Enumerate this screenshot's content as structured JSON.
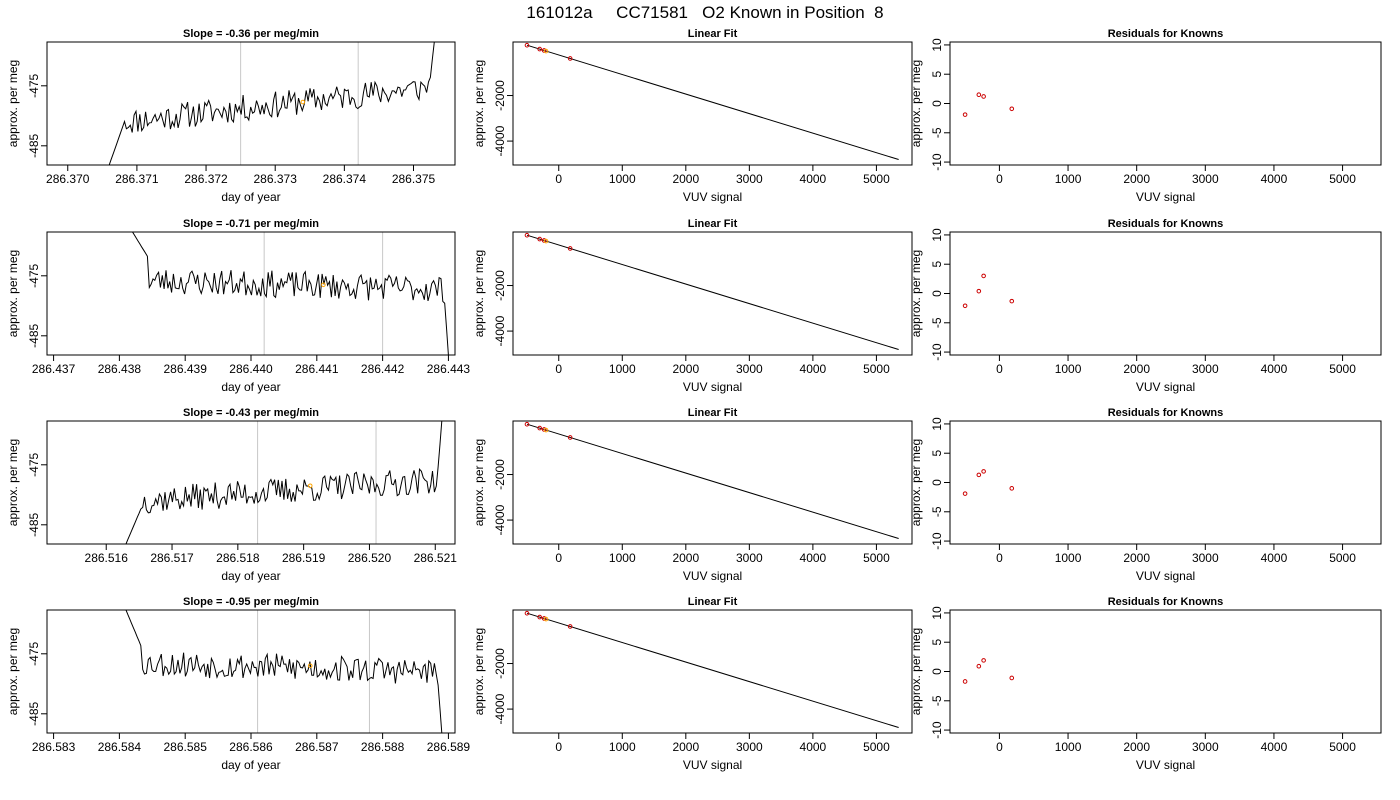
{
  "figure": {
    "title": "161012a     CC71581   O2 Known in Position  8"
  },
  "colors": {
    "line": "#000000",
    "grid": "#c8c8c8",
    "sample": "#ffa500",
    "residual": "#cc0000",
    "fit": "#000000"
  },
  "chart_data": [
    {
      "type": "line",
      "row": 0,
      "title": "Slope =  -0.36  per meg/min",
      "xlabel": "day of year",
      "ylabel": "approx. per meg",
      "xlim": [
        286.3697,
        286.3756
      ],
      "ylim": [
        -488.2,
        -467.7
      ],
      "xticks": [
        286.37,
        286.371,
        286.372,
        286.373,
        286.374,
        286.375
      ],
      "xtick_labels": [
        "286.370",
        "286.371",
        "286.372",
        "286.373",
        "286.374",
        "286.375"
      ],
      "yticks": [
        -475,
        -485
      ],
      "ytick_labels": [
        "-475",
        "-485"
      ],
      "vlines": [
        286.3725,
        286.3742
      ],
      "marker": {
        "x": 286.3734,
        "y": -477.7
      },
      "x_start": 286.3706,
      "x_end": 286.3753,
      "rise": {
        "y_start": -488.2,
        "y_at": -480.5
      },
      "rise_end": {
        "y_end": -467.7
      },
      "level": {
        "y_start": -481.0,
        "y_end": -475.2
      },
      "noise": 1.4,
      "seed": 11
    },
    {
      "type": "line",
      "row": 1,
      "title": "Slope =  -0.71  per meg/min",
      "xlabel": "day of year",
      "ylabel": "approx. per meg",
      "xlim": [
        286.4369,
        286.4431
      ],
      "ylim": [
        -488.2,
        -467.7
      ],
      "xticks": [
        286.437,
        286.438,
        286.439,
        286.44,
        286.441,
        286.442,
        286.443
      ],
      "xtick_labels": [
        "286.437",
        "286.438",
        "286.439",
        "286.440",
        "286.441",
        "286.442",
        "286.443"
      ],
      "yticks": [
        -475,
        -485
      ],
      "ytick_labels": [
        "-475",
        "-485"
      ],
      "vlines": [
        286.4402,
        286.442
      ],
      "marker": {
        "x": 286.4411,
        "y": -476.5
      },
      "x_start": 286.4382,
      "x_end": 286.443,
      "rise": {
        "y_start": -467.7,
        "y_at": -472.0
      },
      "rise_end": {
        "y_end": -488.2
      },
      "level": {
        "y_start": -475.8,
        "y_end": -477.2
      },
      "noise": 1.4,
      "seed": 23
    },
    {
      "type": "line",
      "row": 2,
      "title": "Slope =  -0.43  per meg/min",
      "xlabel": "day of year",
      "ylabel": "approx. per meg",
      "xlim": [
        286.5151,
        286.5213
      ],
      "ylim": [
        -488.2,
        -467.7
      ],
      "xticks": [
        286.516,
        286.517,
        286.518,
        286.519,
        286.52,
        286.521
      ],
      "xtick_labels": [
        "286.516",
        "286.517",
        "286.518",
        "286.519",
        "286.520",
        "286.521"
      ],
      "yticks": [
        -475,
        -485
      ],
      "ytick_labels": [
        "-475",
        "-485"
      ],
      "vlines": [
        286.5183,
        286.5201
      ],
      "marker": {
        "x": 286.5191,
        "y": -478.5
      },
      "x_start": 286.5163,
      "x_end": 286.5211,
      "rise": {
        "y_start": -488.2,
        "y_at": -482.0
      },
      "rise_end": {
        "y_end": -467.7
      },
      "level": {
        "y_start": -481.0,
        "y_end": -477.5
      },
      "noise": 1.4,
      "seed": 37
    },
    {
      "type": "line",
      "row": 3,
      "title": "Slope =  -0.95  per meg/min",
      "xlabel": "day of year",
      "ylabel": "approx. per meg",
      "xlim": [
        286.5829,
        286.5891
      ],
      "ylim": [
        -488.2,
        -467.7
      ],
      "xticks": [
        286.583,
        286.584,
        286.585,
        286.586,
        286.587,
        286.588,
        286.589
      ],
      "xtick_labels": [
        "286.583",
        "286.584",
        "286.585",
        "286.586",
        "286.587",
        "286.588",
        "286.589"
      ],
      "yticks": [
        -475,
        -485
      ],
      "ytick_labels": [
        "-475",
        "-485"
      ],
      "vlines": [
        286.5861,
        286.5878
      ],
      "marker": {
        "x": 286.5869,
        "y": -477.0
      },
      "x_start": 286.5841,
      "x_end": 286.5889,
      "rise": {
        "y_start": -467.7,
        "y_at": -474.0
      },
      "rise_end": {
        "y_end": -488.2
      },
      "level": {
        "y_start": -476.5,
        "y_end": -478.0
      },
      "noise": 1.4,
      "seed": 53
    },
    {
      "type": "scatter",
      "row": 0,
      "title": "Linear Fit",
      "xlabel": "VUV signal",
      "ylabel": "approx. per meg",
      "xlim": [
        -720,
        5560
      ],
      "ylim": [
        -5050,
        350
      ],
      "xticks": [
        0,
        1000,
        2000,
        3000,
        4000,
        5000
      ],
      "xtick_labels": [
        "0",
        "1000",
        "2000",
        "3000",
        "4000",
        "5000"
      ],
      "yticks": [
        -2000,
        -4000
      ],
      "ytick_labels": [
        "-2000",
        "-4000"
      ],
      "fit_line": {
        "x": [
          -500,
          5350
        ],
        "y": [
          210,
          -4810
        ]
      },
      "points": [
        {
          "x": -500,
          "y": 210
        },
        {
          "x": -300,
          "y": 38
        },
        {
          "x": -230,
          "y": -22
        },
        {
          "x": 180,
          "y": -373
        }
      ],
      "sample": {
        "x": -200,
        "y": -48
      }
    },
    {
      "type": "scatter",
      "row": 1,
      "title": "Linear Fit",
      "xlabel": "VUV signal",
      "ylabel": "approx. per meg",
      "xlim": [
        -720,
        5560
      ],
      "ylim": [
        -5050,
        350
      ],
      "xticks": [
        0,
        1000,
        2000,
        3000,
        4000,
        5000
      ],
      "xtick_labels": [
        "0",
        "1000",
        "2000",
        "3000",
        "4000",
        "5000"
      ],
      "yticks": [
        -2000,
        -4000
      ],
      "ytick_labels": [
        "-2000",
        "-4000"
      ],
      "fit_line": {
        "x": [
          -500,
          5350
        ],
        "y": [
          210,
          -4810
        ]
      },
      "points": [
        {
          "x": -500,
          "y": 210
        },
        {
          "x": -300,
          "y": 38
        },
        {
          "x": -230,
          "y": -22
        },
        {
          "x": 180,
          "y": -373
        }
      ],
      "sample": {
        "x": -200,
        "y": -48
      }
    },
    {
      "type": "scatter",
      "row": 2,
      "title": "Linear Fit",
      "xlabel": "VUV signal",
      "ylabel": "approx. per meg",
      "xlim": [
        -720,
        5560
      ],
      "ylim": [
        -5050,
        350
      ],
      "xticks": [
        0,
        1000,
        2000,
        3000,
        4000,
        5000
      ],
      "xtick_labels": [
        "0",
        "1000",
        "2000",
        "3000",
        "4000",
        "5000"
      ],
      "yticks": [
        -2000,
        -4000
      ],
      "ytick_labels": [
        "-2000",
        "-4000"
      ],
      "fit_line": {
        "x": [
          -500,
          5350
        ],
        "y": [
          210,
          -4810
        ]
      },
      "points": [
        {
          "x": -500,
          "y": 210
        },
        {
          "x": -300,
          "y": 38
        },
        {
          "x": -230,
          "y": -22
        },
        {
          "x": 180,
          "y": -373
        }
      ],
      "sample": {
        "x": -200,
        "y": -48
      }
    },
    {
      "type": "scatter",
      "row": 3,
      "title": "Linear Fit",
      "xlabel": "VUV signal",
      "ylabel": "approx. per meg",
      "xlim": [
        -720,
        5560
      ],
      "ylim": [
        -5050,
        350
      ],
      "xticks": [
        0,
        1000,
        2000,
        3000,
        4000,
        5000
      ],
      "xtick_labels": [
        "0",
        "1000",
        "2000",
        "3000",
        "4000",
        "5000"
      ],
      "yticks": [
        -2000,
        -4000
      ],
      "ytick_labels": [
        "-2000",
        "-4000"
      ],
      "fit_line": {
        "x": [
          -500,
          5350
        ],
        "y": [
          210,
          -4810
        ]
      },
      "points": [
        {
          "x": -500,
          "y": 210
        },
        {
          "x": -300,
          "y": 38
        },
        {
          "x": -230,
          "y": -22
        },
        {
          "x": 180,
          "y": -373
        }
      ],
      "sample": {
        "x": -200,
        "y": -48
      }
    },
    {
      "type": "scatter",
      "row": 0,
      "title": "Residuals for Knowns",
      "xlabel": "VUV signal",
      "ylabel": "approx. per meg",
      "xlim": [
        -720,
        5560
      ],
      "ylim": [
        -10.5,
        10.5
      ],
      "xticks": [
        0,
        1000,
        2000,
        3000,
        4000,
        5000
      ],
      "xtick_labels": [
        "0",
        "1000",
        "2000",
        "3000",
        "4000",
        "5000"
      ],
      "yticks": [
        10,
        5,
        0,
        -5,
        -10
      ],
      "ytick_labels": [
        "10",
        "5",
        "0",
        "-5",
        "-10"
      ],
      "points": [
        {
          "x": -500,
          "y": -1.9
        },
        {
          "x": -300,
          "y": 1.5
        },
        {
          "x": -230,
          "y": 1.2
        },
        {
          "x": 180,
          "y": -0.9
        }
      ]
    },
    {
      "type": "scatter",
      "row": 1,
      "title": "Residuals for Knowns",
      "xlabel": "VUV signal",
      "ylabel": "approx. per meg",
      "xlim": [
        -720,
        5560
      ],
      "ylim": [
        -10.5,
        10.5
      ],
      "xticks": [
        0,
        1000,
        2000,
        3000,
        4000,
        5000
      ],
      "xtick_labels": [
        "0",
        "1000",
        "2000",
        "3000",
        "4000",
        "5000"
      ],
      "yticks": [
        10,
        5,
        0,
        -5,
        -10
      ],
      "ytick_labels": [
        "10",
        "5",
        "0",
        "-5",
        "-10"
      ],
      "points": [
        {
          "x": -500,
          "y": -2.1
        },
        {
          "x": -300,
          "y": 0.4
        },
        {
          "x": -230,
          "y": 3.0
        },
        {
          "x": 180,
          "y": -1.3
        }
      ]
    },
    {
      "type": "scatter",
      "row": 2,
      "title": "Residuals for Knowns",
      "xlabel": "VUV signal",
      "ylabel": "approx. per meg",
      "xlim": [
        -720,
        5560
      ],
      "ylim": [
        -10.5,
        10.5
      ],
      "xticks": [
        0,
        1000,
        2000,
        3000,
        4000,
        5000
      ],
      "xtick_labels": [
        "0",
        "1000",
        "2000",
        "3000",
        "4000",
        "5000"
      ],
      "yticks": [
        10,
        5,
        0,
        -5,
        -10
      ],
      "ytick_labels": [
        "10",
        "5",
        "0",
        "-5",
        "-10"
      ],
      "points": [
        {
          "x": -500,
          "y": -1.9
        },
        {
          "x": -300,
          "y": 1.3
        },
        {
          "x": -230,
          "y": 1.9
        },
        {
          "x": 180,
          "y": -1.0
        }
      ]
    },
    {
      "type": "scatter",
      "row": 3,
      "title": "Residuals for Knowns",
      "xlabel": "VUV signal",
      "ylabel": "approx. per meg",
      "xlim": [
        -720,
        5560
      ],
      "ylim": [
        -10.5,
        10.5
      ],
      "xticks": [
        0,
        1000,
        2000,
        3000,
        4000,
        5000
      ],
      "xtick_labels": [
        "0",
        "1000",
        "2000",
        "3000",
        "4000",
        "5000"
      ],
      "yticks": [
        10,
        5,
        0,
        -5,
        -10
      ],
      "ytick_labels": [
        "10",
        "5",
        "0",
        "-5",
        "-10"
      ],
      "points": [
        {
          "x": -500,
          "y": -1.7
        },
        {
          "x": -300,
          "y": 0.9
        },
        {
          "x": -230,
          "y": 1.9
        },
        {
          "x": 180,
          "y": -1.1
        }
      ]
    }
  ]
}
